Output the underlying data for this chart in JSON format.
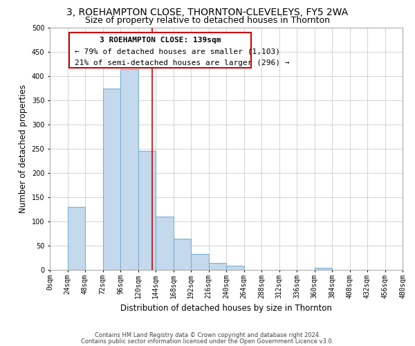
{
  "title": "3, ROEHAMPTON CLOSE, THORNTON-CLEVELEYS, FY5 2WA",
  "subtitle": "Size of property relative to detached houses in Thornton",
  "xlabel": "Distribution of detached houses by size in Thornton",
  "ylabel": "Number of detached properties",
  "footer_line1": "Contains HM Land Registry data © Crown copyright and database right 2024.",
  "footer_line2": "Contains public sector information licensed under the Open Government Licence v3.0.",
  "bin_edges": [
    0,
    24,
    48,
    72,
    96,
    120,
    144,
    168,
    192,
    216,
    240,
    264,
    288,
    312,
    336,
    360,
    384,
    408,
    432,
    456,
    480
  ],
  "bar_heights": [
    0,
    130,
    0,
    375,
    415,
    245,
    110,
    65,
    33,
    15,
    8,
    0,
    0,
    0,
    0,
    5,
    0,
    0,
    0,
    0
  ],
  "bar_color": "#c5d9ec",
  "bar_edge_color": "#7aafd4",
  "property_line_x": 139,
  "property_line_color": "#cc0000",
  "annotation_line1": "3 ROEHAMPTON CLOSE: 139sqm",
  "annotation_line2": "← 79% of detached houses are smaller (1,103)",
  "annotation_line3": "21% of semi-detached houses are larger (296) →",
  "ylim": [
    0,
    500
  ],
  "xlim": [
    0,
    480
  ],
  "yticks": [
    0,
    50,
    100,
    150,
    200,
    250,
    300,
    350,
    400,
    450,
    500
  ],
  "xtick_labels": [
    "0sqm",
    "24sqm",
    "48sqm",
    "72sqm",
    "96sqm",
    "120sqm",
    "144sqm",
    "168sqm",
    "192sqm",
    "216sqm",
    "240sqm",
    "264sqm",
    "288sqm",
    "312sqm",
    "336sqm",
    "360sqm",
    "384sqm",
    "408sqm",
    "432sqm",
    "456sqm",
    "480sqm"
  ],
  "grid_color": "#cccccc",
  "background_color": "#ffffff",
  "title_fontsize": 10,
  "subtitle_fontsize": 9,
  "axis_label_fontsize": 8.5,
  "tick_fontsize": 7,
  "annotation_fontsize": 8,
  "footer_fontsize": 6
}
